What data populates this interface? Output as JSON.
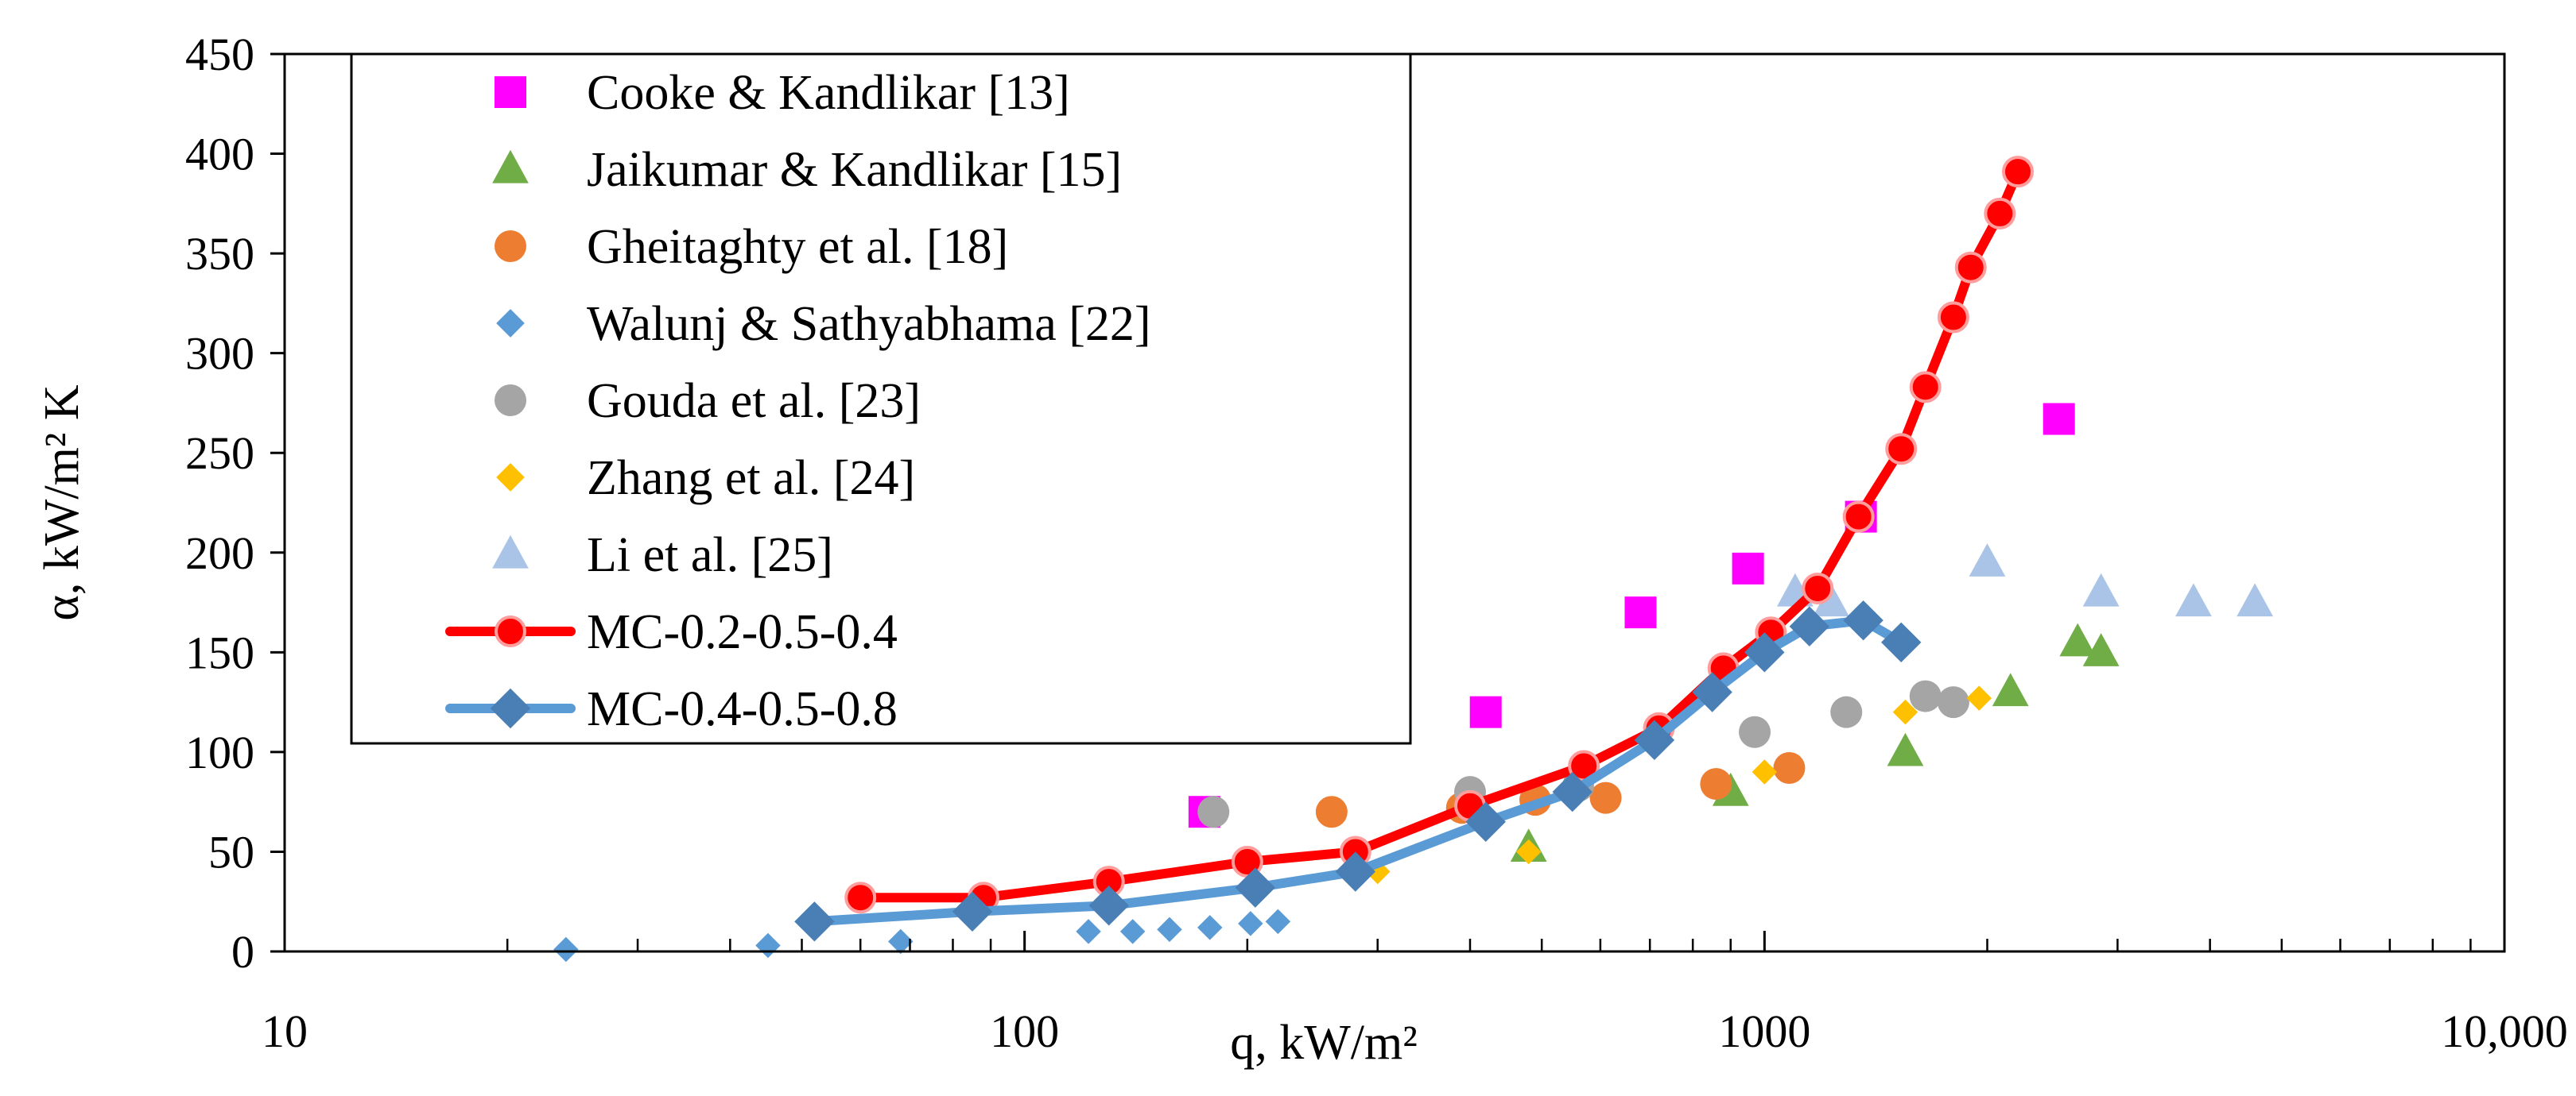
{
  "chart_data": {
    "type": "scatter",
    "title": "",
    "xlabel": "q, kW/m²",
    "ylabel": "α, kW/m² K",
    "xscale": "log",
    "xlim": [
      10,
      10000
    ],
    "ylim": [
      0,
      450
    ],
    "xticks": [
      10,
      100,
      1000,
      10000
    ],
    "xtick_labels": [
      "10",
      "100",
      "1000",
      "10,000"
    ],
    "yticks": [
      0,
      50,
      100,
      150,
      200,
      250,
      300,
      350,
      400,
      450
    ],
    "ytick_labels": [
      "0",
      "50",
      "100",
      "150",
      "200",
      "250",
      "300",
      "350",
      "400",
      "450"
    ],
    "legend_position": "top-left",
    "series": [
      {
        "name": "Cooke & Kandlikar [13]",
        "kind": "marker",
        "marker": "square",
        "color": "#ff00ff",
        "x": [
          175,
          420,
          680,
          950,
          1350,
          2500
        ],
        "y": [
          70,
          120,
          170,
          192,
          218,
          267
        ]
      },
      {
        "name": "Jaikumar & Kandlikar [15]",
        "kind": "marker",
        "marker": "triangle",
        "color": "#70ad47",
        "x": [
          480,
          900,
          1550,
          2150,
          2650,
          2850
        ],
        "y": [
          52,
          80,
          100,
          130,
          155,
          150
        ]
      },
      {
        "name": "Gheitaghty et al. [18]",
        "kind": "marker",
        "marker": "circle",
        "color": "#ed7d31",
        "x": [
          260,
          390,
          490,
          610,
          860,
          1080
        ],
        "y": [
          70,
          72,
          76,
          77,
          84,
          92
        ]
      },
      {
        "name": "Walunj & Sathyabhama [22]",
        "kind": "marker",
        "marker": "diamond",
        "color": "#5b9bd5",
        "x": [
          24,
          45,
          68,
          122,
          140,
          157,
          178,
          202,
          220
        ],
        "y": [
          1,
          3,
          5,
          10,
          10,
          11,
          12,
          14,
          15
        ]
      },
      {
        "name": "Gouda et al. [23]",
        "kind": "marker",
        "marker": "circle",
        "color": "#a5a5a5",
        "x": [
          180,
          400,
          560,
          970,
          1290,
          1650,
          1800
        ],
        "y": [
          70,
          80,
          83,
          110,
          120,
          128,
          125
        ]
      },
      {
        "name": "Zhang et al. [24]",
        "kind": "marker",
        "marker": "diamond",
        "color": "#ffc000",
        "x": [
          300,
          480,
          1000,
          1550,
          1950
        ],
        "y": [
          40,
          50,
          90,
          120,
          127
        ]
      },
      {
        "name": "Li et al. [25]",
        "kind": "marker",
        "marker": "triangle",
        "color": "#a9c4e6",
        "x": [
          1100,
          1230,
          2000,
          2850,
          3800,
          4600
        ],
        "y": [
          180,
          175,
          195,
          180,
          175,
          175
        ]
      },
      {
        "name": "MC-0.2-0.5-0.4",
        "kind": "line",
        "marker": "circle",
        "color": "#ff0000",
        "x": [
          60,
          88,
          130,
          200,
          280,
          400,
          570,
          720,
          880,
          1020,
          1180,
          1340,
          1530,
          1650,
          1800,
          1900,
          2080,
          2200
        ],
        "y": [
          27,
          27,
          35,
          45,
          50,
          73,
          93,
          112,
          142,
          160,
          182,
          218,
          252,
          283,
          318,
          343,
          370,
          391
        ]
      },
      {
        "name": "MC-0.4-0.5-0.8",
        "kind": "line",
        "marker": "diamond",
        "color": "#5b9bd5",
        "x": [
          52,
          85,
          130,
          205,
          280,
          420,
          550,
          710,
          850,
          1000,
          1150,
          1360,
          1530
        ],
        "y": [
          15,
          20,
          23,
          32,
          40,
          65,
          80,
          106,
          130,
          150,
          163,
          166,
          155
        ]
      }
    ]
  }
}
